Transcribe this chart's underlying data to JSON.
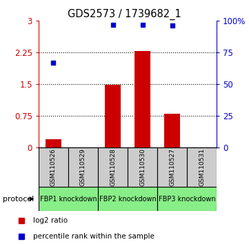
{
  "title": "GDS2573 / 1739682_1",
  "samples": [
    "GSM110526",
    "GSM110529",
    "GSM110528",
    "GSM110530",
    "GSM110527",
    "GSM110531"
  ],
  "log2_ratio": [
    0.2,
    0.0,
    1.48,
    2.28,
    0.8,
    0.0
  ],
  "percentile_rank": [
    67,
    0,
    97,
    97,
    96,
    0
  ],
  "protocols": [
    {
      "label": "FBP1 knockdown",
      "samples": [
        0,
        1
      ],
      "color": "#88ee88"
    },
    {
      "label": "FBP2 knockdown",
      "samples": [
        2,
        3
      ],
      "color": "#88ee88"
    },
    {
      "label": "FBP3 knockdown",
      "samples": [
        4,
        5
      ],
      "color": "#88ee88"
    }
  ],
  "bar_color": "#cc0000",
  "dot_color": "#0000cc",
  "left_ylim": [
    0,
    3
  ],
  "right_ylim": [
    0,
    100
  ],
  "left_yticks": [
    0,
    0.75,
    1.5,
    2.25,
    3
  ],
  "left_yticklabels": [
    "0",
    "0.75",
    "1.5",
    "2.25",
    "3"
  ],
  "right_yticks": [
    0,
    25,
    50,
    75,
    100
  ],
  "right_yticklabels": [
    "0",
    "25",
    "50",
    "75",
    "100%"
  ],
  "hlines": [
    0.75,
    1.5,
    2.25
  ],
  "left_tick_color": "#cc0000",
  "right_tick_color": "#0000cc",
  "sample_box_color": "#cccccc",
  "protocol_label": "protocol"
}
